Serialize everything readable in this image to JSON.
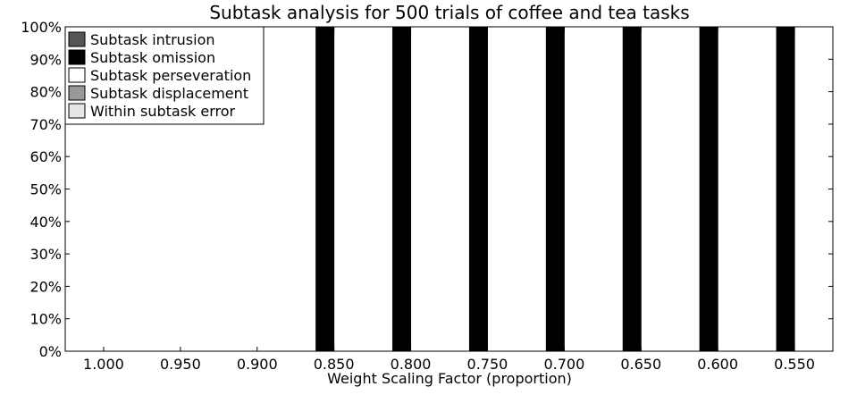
{
  "chart_data": {
    "type": "bar",
    "stacked": true,
    "title": "Subtask analysis for 500 trials of coffee and tea tasks",
    "xlabel": "Weight Scaling Factor (proportion)",
    "ylabel": "",
    "ylim": [
      0,
      100
    ],
    "y_ticks": [
      0,
      10,
      20,
      30,
      40,
      50,
      60,
      70,
      80,
      90,
      100
    ],
    "y_tick_labels": [
      "0%",
      "10%",
      "20%",
      "30%",
      "40%",
      "50%",
      "60%",
      "70%",
      "80%",
      "90%",
      "100%"
    ],
    "categories": [
      "1.000",
      "0.950",
      "0.900",
      "0.850",
      "0.800",
      "0.750",
      "0.700",
      "0.650",
      "0.600",
      "0.550"
    ],
    "grid": false,
    "legend_position": "top-left",
    "groups": [
      {
        "name": "",
        "series": [
          {
            "name": "Subtask intrusion",
            "color": "#555555",
            "values": [
              0,
              0,
              0,
              0,
              0,
              0,
              0,
              0,
              0,
              0
            ]
          },
          {
            "name": "Subtask omission",
            "color": "#000000",
            "values": [
              0,
              0,
              0,
              100,
              100,
              100,
              100,
              100,
              100,
              100
            ]
          },
          {
            "name": "Subtask perseveration",
            "color": "#ffffff",
            "values": [
              0,
              0,
              0,
              0,
              0,
              0,
              0,
              0,
              0,
              0
            ]
          },
          {
            "name": "Subtask displacement",
            "color": "#999999",
            "values": [
              0,
              0,
              0,
              0,
              0,
              0,
              0,
              0,
              0,
              0
            ]
          },
          {
            "name": "Within subtask error",
            "color": "#e6e6e6",
            "values": [
              0,
              0,
              0,
              0,
              0,
              0,
              0,
              0,
              0,
              0
            ]
          }
        ]
      },
      {
        "name": "",
        "series": [
          {
            "name": "Subtask intrusion",
            "color": "#555555",
            "values": [
              0,
              0,
              0,
              0,
              0,
              0,
              0,
              0,
              0,
              0
            ]
          },
          {
            "name": "Subtask omission",
            "color": "#000000",
            "values": [
              0,
              0,
              0,
              0,
              0,
              0,
              0,
              0,
              0,
              0
            ]
          },
          {
            "name": "Subtask perseveration",
            "color": "#ffffff",
            "values": [
              0,
              0,
              0,
              0,
              0,
              0,
              0,
              0,
              0,
              0
            ]
          },
          {
            "name": "Subtask displacement",
            "color": "#999999",
            "values": [
              0,
              0,
              0,
              0,
              0,
              0,
              0,
              0,
              0,
              0
            ]
          },
          {
            "name": "Within subtask error",
            "color": "#e6e6e6",
            "values": [
              0,
              0,
              0,
              0,
              0,
              0,
              0,
              0,
              0,
              0
            ]
          }
        ]
      }
    ],
    "legend": [
      {
        "label": "Subtask intrusion",
        "color": "#555555"
      },
      {
        "label": "Subtask omission",
        "color": "#000000"
      },
      {
        "label": "Subtask perseveration",
        "color": "#ffffff"
      },
      {
        "label": "Subtask displacement",
        "color": "#999999"
      },
      {
        "label": "Within subtask error",
        "color": "#e6e6e6"
      }
    ]
  }
}
